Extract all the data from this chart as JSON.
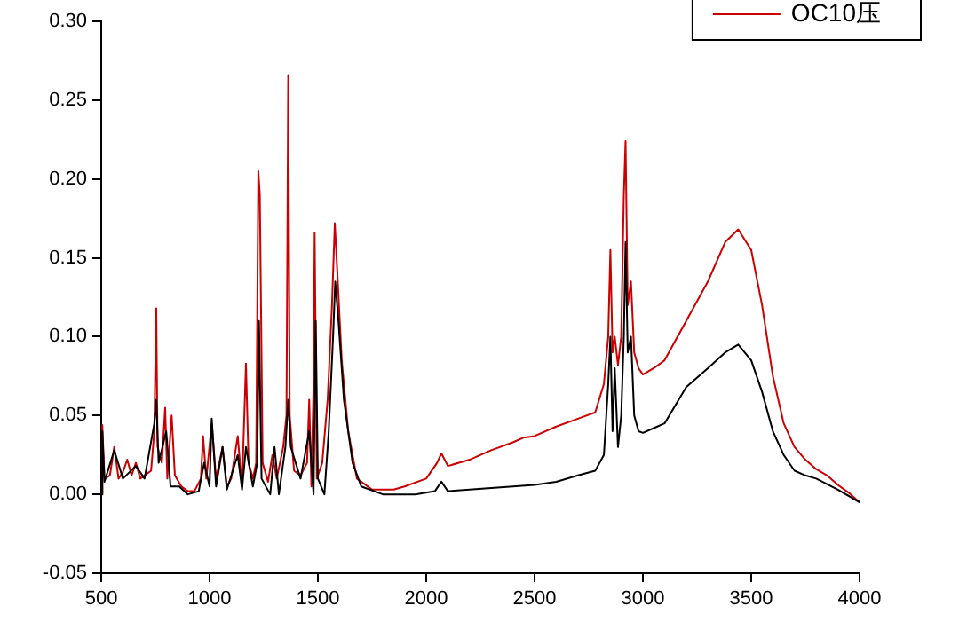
{
  "chart_data": {
    "type": "line",
    "legend": "top right",
    "grid": false,
    "marker": "none",
    "line_style": "solid",
    "xlim": [
      500,
      4000
    ],
    "xticks": [
      500,
      1000,
      1500,
      2000,
      2500,
      3000,
      3500,
      4000
    ],
    "ylim": [
      -0.05,
      0.3
    ],
    "yticks": [
      {
        "value": -0.05,
        "label": "-0.05"
      },
      {
        "value": 0,
        "label": "0.00"
      },
      {
        "value": 0.05,
        "label": "0.05"
      },
      {
        "value": 0.1,
        "label": "0.10"
      },
      {
        "value": 0.15,
        "label": "0.15"
      },
      {
        "value": 0.2,
        "label": "0.20"
      },
      {
        "value": 0.25,
        "label": "0.25"
      },
      {
        "value": 0.3,
        "label": "0.30"
      }
    ],
    "series": [
      {
        "color": "#000000",
        "x": [
          500,
          505,
          515,
          560,
          600,
          660,
          700,
          745,
          754,
          765,
          800,
          820,
          860,
          900,
          950,
          975,
          1000,
          1010,
          1030,
          1060,
          1080,
          1130,
          1150,
          1168,
          1200,
          1220,
          1228,
          1240,
          1280,
          1300,
          1320,
          1350,
          1363,
          1375,
          1420,
          1460,
          1480,
          1490,
          1500,
          1530,
          1550,
          1570,
          1580,
          1595,
          1620,
          1660,
          1700,
          1800,
          1950,
          2040,
          2070,
          2100,
          2200,
          2300,
          2400,
          2500,
          2600,
          2700,
          2780,
          2820,
          2840,
          2850,
          2860,
          2870,
          2885,
          2900,
          2912,
          2920,
          2930,
          2945,
          2960,
          2980,
          3000,
          3050,
          3100,
          3200,
          3300,
          3380,
          3440,
          3500,
          3550,
          3600,
          3650,
          3700,
          3750,
          3800,
          3900,
          4000
        ],
        "values": [
          0.0,
          0.04,
          0.008,
          0.028,
          0.01,
          0.018,
          0.01,
          0.045,
          0.06,
          0.02,
          0.04,
          0.005,
          0.005,
          0.0,
          0.002,
          0.02,
          0.005,
          0.048,
          0.005,
          0.03,
          0.003,
          0.025,
          0.003,
          0.03,
          0.005,
          0.02,
          0.11,
          0.01,
          0.0,
          0.03,
          0.0,
          0.03,
          0.06,
          0.03,
          0.01,
          0.04,
          0.0,
          0.11,
          0.01,
          0.0,
          0.04,
          0.1,
          0.135,
          0.11,
          0.06,
          0.02,
          0.005,
          0.0,
          0.0,
          0.002,
          0.008,
          0.002,
          0.003,
          0.004,
          0.005,
          0.006,
          0.008,
          0.012,
          0.015,
          0.025,
          0.07,
          0.1,
          0.04,
          0.08,
          0.03,
          0.05,
          0.1,
          0.16,
          0.09,
          0.1,
          0.05,
          0.04,
          0.039,
          0.042,
          0.045,
          0.068,
          0.08,
          0.09,
          0.095,
          0.085,
          0.065,
          0.04,
          0.025,
          0.015,
          0.012,
          0.01,
          0.003,
          -0.005
        ]
      },
      {
        "name": "OC10压",
        "color": "#cc0000",
        "x": [
          500,
          505,
          515,
          540,
          560,
          580,
          600,
          620,
          640,
          660,
          680,
          700,
          730,
          745,
          754,
          760,
          780,
          795,
          805,
          825,
          840,
          870,
          900,
          930,
          960,
          970,
          985,
          1010,
          1030,
          1060,
          1080,
          1100,
          1130,
          1150,
          1168,
          1180,
          1200,
          1215,
          1225,
          1232,
          1245,
          1270,
          1290,
          1310,
          1340,
          1355,
          1363,
          1370,
          1390,
          1420,
          1450,
          1460,
          1470,
          1480,
          1485,
          1495,
          1520,
          1545,
          1565,
          1578,
          1590,
          1610,
          1640,
          1680,
          1750,
          1850,
          1900,
          2000,
          2050,
          2070,
          2100,
          2200,
          2300,
          2400,
          2450,
          2500,
          2600,
          2700,
          2780,
          2820,
          2840,
          2850,
          2860,
          2870,
          2885,
          2900,
          2912,
          2920,
          2930,
          2945,
          2960,
          2980,
          3000,
          3050,
          3100,
          3200,
          3300,
          3380,
          3440,
          3500,
          3550,
          3600,
          3650,
          3700,
          3750,
          3800,
          3850,
          3900,
          3950,
          4000
        ],
        "values": [
          0.0,
          0.044,
          0.01,
          0.012,
          0.03,
          0.01,
          0.014,
          0.022,
          0.012,
          0.02,
          0.01,
          0.012,
          0.015,
          0.04,
          0.118,
          0.03,
          0.02,
          0.055,
          0.01,
          0.05,
          0.012,
          0.005,
          0.002,
          0.002,
          0.01,
          0.037,
          0.01,
          0.045,
          0.01,
          0.03,
          0.005,
          0.01,
          0.037,
          0.005,
          0.083,
          0.02,
          0.01,
          0.02,
          0.205,
          0.19,
          0.02,
          0.008,
          0.025,
          0.01,
          0.03,
          0.05,
          0.266,
          0.05,
          0.015,
          0.012,
          0.02,
          0.06,
          0.005,
          0.07,
          0.166,
          0.01,
          0.02,
          0.06,
          0.12,
          0.172,
          0.14,
          0.085,
          0.04,
          0.01,
          0.003,
          0.003,
          0.005,
          0.01,
          0.02,
          0.026,
          0.018,
          0.022,
          0.028,
          0.033,
          0.036,
          0.037,
          0.043,
          0.048,
          0.052,
          0.07,
          0.1,
          0.155,
          0.09,
          0.1,
          0.082,
          0.1,
          0.19,
          0.224,
          0.12,
          0.135,
          0.09,
          0.08,
          0.076,
          0.08,
          0.085,
          0.11,
          0.135,
          0.16,
          0.168,
          0.155,
          0.12,
          0.075,
          0.045,
          0.03,
          0.022,
          0.016,
          0.012,
          0.006,
          0.001,
          -0.005
        ]
      }
    ]
  }
}
